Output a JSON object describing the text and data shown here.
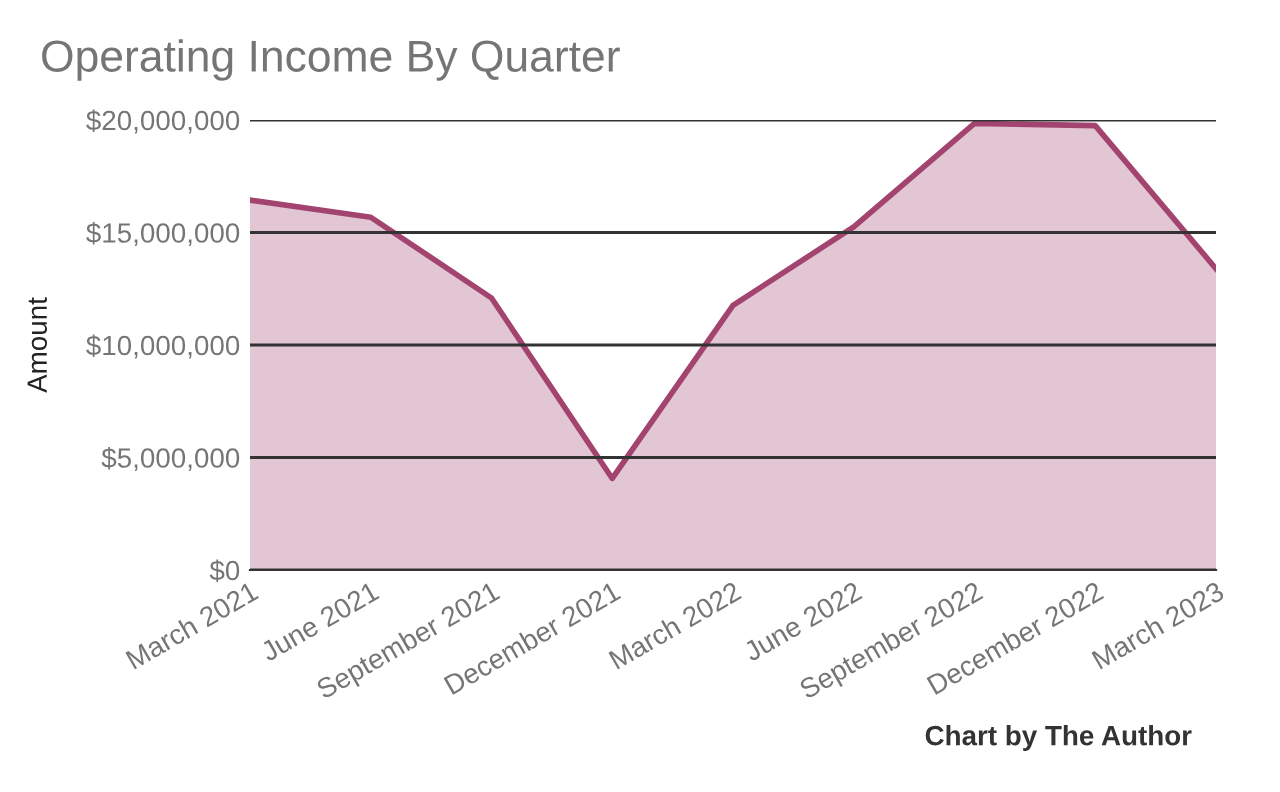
{
  "chart_data": {
    "type": "area",
    "title": "Operating Income By Quarter",
    "ylabel": "Amount",
    "categories": [
      "March 2021",
      "June 2021",
      "September 2021",
      "December 2021",
      "March 2022",
      "June 2022",
      "September 2022",
      "December 2022",
      "March 2023"
    ],
    "series": [
      {
        "color": "#a3436f",
        "values": [
          16440000,
          15680000,
          12090000,
          4070000,
          11760000,
          15250000,
          19850000,
          19750000,
          13390000
        ]
      }
    ],
    "ylim": [
      0,
      20000000
    ],
    "yticks": [
      {
        "value": 0,
        "label": "$0"
      },
      {
        "value": 5000000,
        "label": "$5,000,000"
      },
      {
        "value": 10000000,
        "label": "$10,000,000"
      },
      {
        "value": 15000000,
        "label": "$15,000,000"
      },
      {
        "value": 20000000,
        "label": "$20,000,000"
      }
    ],
    "grid": "y",
    "legend": false,
    "annotations": [
      "Chart by The Author"
    ]
  }
}
